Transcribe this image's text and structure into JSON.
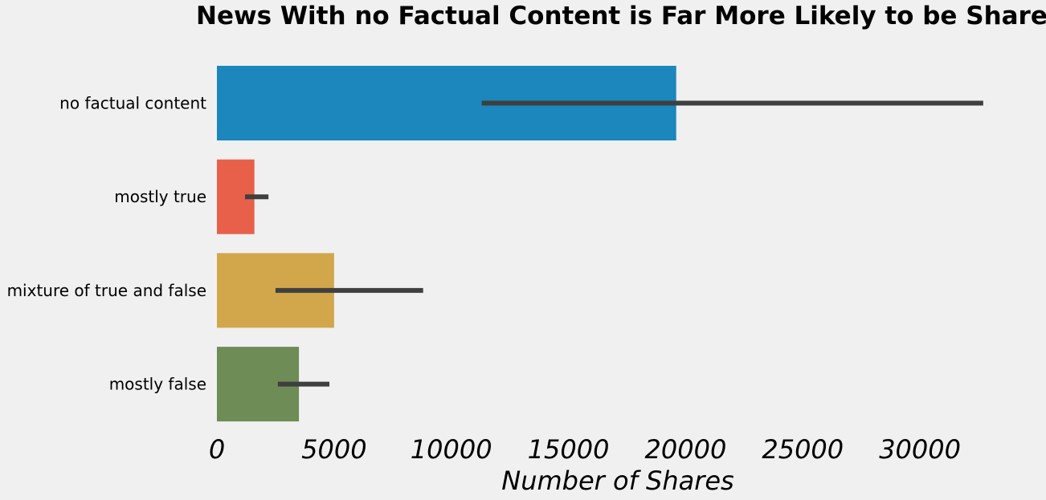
{
  "chart_data": {
    "type": "bar",
    "orientation": "horizontal",
    "title": "News With no Factual Content is Far More Likely to be Shared",
    "xlabel": "Number of Shares",
    "ylabel": "",
    "xlim": [
      0,
      33500
    ],
    "x_ticks": [
      0,
      5000,
      10000,
      15000,
      20000,
      25000,
      30000
    ],
    "x_tick_labels": [
      "0",
      "5000",
      "10000",
      "15000",
      "20000",
      "25000",
      "30000"
    ],
    "grid": false,
    "categories": [
      "no factual content",
      "mostly true",
      "mixture of true and false",
      "mostly false"
    ],
    "values": [
      19600,
      1600,
      5000,
      3500
    ],
    "error_low": [
      11300,
      1200,
      2500,
      2600
    ],
    "error_high": [
      32700,
      2200,
      8800,
      4800
    ],
    "colors": [
      "#1b87bc",
      "#e8604a",
      "#d2a64b",
      "#6e8c55"
    ],
    "error_bar_color": "#3f3f3f"
  }
}
